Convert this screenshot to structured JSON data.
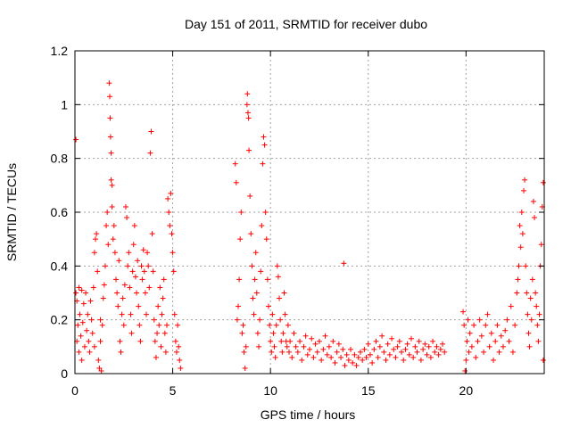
{
  "chart_data": {
    "type": "scatter",
    "title": "Day 151 of 2011, SRMTID for receiver dubo",
    "xlabel": "GPS time / hours",
    "ylabel": "SRMTID / TECUs",
    "xlim": [
      0,
      24
    ],
    "ylim": [
      0,
      1.2
    ],
    "xticks": [
      0,
      5,
      10,
      15,
      20
    ],
    "xtick_labels": [
      "0",
      "5",
      "10",
      "15",
      "20"
    ],
    "yticks": [
      0,
      0.2,
      0.4,
      0.6,
      0.8,
      1.0,
      1.2
    ],
    "ytick_labels": [
      "0",
      "0.2",
      "0.4",
      "0.6",
      "0.8",
      "1",
      "1.2"
    ],
    "grid": true,
    "series_color": "#ff0000",
    "marker": "plus",
    "series": [
      {
        "name": "SRMTID",
        "points": [
          [
            0.05,
            0.87
          ],
          [
            0.05,
            0.3
          ],
          [
            0.1,
            0.27
          ],
          [
            0.1,
            0.12
          ],
          [
            0.15,
            0.18
          ],
          [
            0.2,
            0.32
          ],
          [
            0.2,
            0.08
          ],
          [
            0.25,
            0.22
          ],
          [
            0.3,
            0.14
          ],
          [
            0.35,
            0.31
          ],
          [
            0.35,
            0.05
          ],
          [
            0.4,
            0.19
          ],
          [
            0.45,
            0.26
          ],
          [
            0.5,
            0.1
          ],
          [
            0.55,
            0.3
          ],
          [
            0.6,
            0.16
          ],
          [
            0.65,
            0.22
          ],
          [
            0.7,
            0.12
          ],
          [
            0.75,
            0.08
          ],
          [
            0.8,
            0.27
          ],
          [
            0.85,
            0.2
          ],
          [
            0.9,
            0.15
          ],
          [
            0.95,
            0.32
          ],
          [
            1.0,
            0.1
          ],
          [
            1.0,
            0.45
          ],
          [
            1.05,
            0.5
          ],
          [
            1.1,
            0.52
          ],
          [
            1.15,
            0.38
          ],
          [
            1.2,
            0.05
          ],
          [
            1.25,
            0.02
          ],
          [
            1.3,
            0.12
          ],
          [
            1.3,
            0.2
          ],
          [
            1.35,
            0.01
          ],
          [
            1.4,
            0.18
          ],
          [
            1.45,
            0.28
          ],
          [
            1.5,
            0.33
          ],
          [
            1.55,
            0.4
          ],
          [
            1.6,
            0.55
          ],
          [
            1.65,
            0.6
          ],
          [
            1.7,
            0.48
          ],
          [
            1.75,
            1.08
          ],
          [
            1.78,
            1.03
          ],
          [
            1.8,
            0.95
          ],
          [
            1.82,
            0.88
          ],
          [
            1.85,
            0.82
          ],
          [
            1.85,
            0.72
          ],
          [
            1.9,
            0.7
          ],
          [
            1.9,
            0.62
          ],
          [
            1.95,
            0.5
          ],
          [
            2.0,
            0.55
          ],
          [
            2.05,
            0.45
          ],
          [
            2.1,
            0.35
          ],
          [
            2.15,
            0.3
          ],
          [
            2.2,
            0.25
          ],
          [
            2.25,
            0.42
          ],
          [
            2.3,
            0.12
          ],
          [
            2.35,
            0.08
          ],
          [
            2.4,
            0.22
          ],
          [
            2.45,
            0.28
          ],
          [
            2.5,
            0.18
          ],
          [
            2.55,
            0.33
          ],
          [
            2.6,
            0.62
          ],
          [
            2.65,
            0.58
          ],
          [
            2.7,
            0.4
          ],
          [
            2.75,
            0.45
          ],
          [
            2.8,
            0.32
          ],
          [
            2.85,
            0.22
          ],
          [
            2.9,
            0.15
          ],
          [
            2.95,
            0.38
          ],
          [
            3.0,
            0.48
          ],
          [
            3.05,
            0.55
          ],
          [
            3.1,
            0.36
          ],
          [
            3.15,
            0.3
          ],
          [
            3.2,
            0.42
          ],
          [
            3.25,
            0.25
          ],
          [
            3.3,
            0.18
          ],
          [
            3.35,
            0.12
          ],
          [
            3.4,
            0.4
          ],
          [
            3.45,
            0.35
          ],
          [
            3.5,
            0.46
          ],
          [
            3.55,
            0.38
          ],
          [
            3.6,
            0.3
          ],
          [
            3.65,
            0.22
          ],
          [
            3.7,
            0.45
          ],
          [
            3.75,
            0.4
          ],
          [
            3.8,
            0.32
          ],
          [
            3.85,
            0.82
          ],
          [
            3.9,
            0.9
          ],
          [
            3.95,
            0.52
          ],
          [
            4.0,
            0.38
          ],
          [
            4.05,
            0.2
          ],
          [
            4.1,
            0.12
          ],
          [
            4.15,
            0.06
          ],
          [
            4.2,
            0.15
          ],
          [
            4.25,
            0.25
          ],
          [
            4.3,
            0.18
          ],
          [
            4.35,
            0.32
          ],
          [
            4.4,
            0.1
          ],
          [
            4.45,
            0.22
          ],
          [
            4.5,
            0.28
          ],
          [
            4.55,
            0.35
          ],
          [
            4.6,
            0.15
          ],
          [
            4.65,
            0.08
          ],
          [
            4.7,
            0.18
          ],
          [
            4.75,
            0.65
          ],
          [
            4.8,
            0.6
          ],
          [
            4.85,
            0.55
          ],
          [
            4.9,
            0.67
          ],
          [
            4.95,
            0.52
          ],
          [
            5.0,
            0.45
          ],
          [
            5.05,
            0.38
          ],
          [
            5.1,
            0.22
          ],
          [
            5.15,
            0.12
          ],
          [
            5.2,
            0.08
          ],
          [
            5.25,
            0.18
          ],
          [
            5.3,
            0.1
          ],
          [
            5.35,
            0.05
          ],
          [
            5.4,
            0.02
          ],
          [
            8.2,
            0.78
          ],
          [
            8.25,
            0.71
          ],
          [
            8.3,
            0.2
          ],
          [
            8.35,
            0.25
          ],
          [
            8.4,
            0.35
          ],
          [
            8.45,
            0.5
          ],
          [
            8.5,
            0.6
          ],
          [
            8.55,
            0.15
          ],
          [
            8.6,
            0.18
          ],
          [
            8.65,
            0.08
          ],
          [
            8.7,
            0.02
          ],
          [
            8.75,
            0.1
          ],
          [
            8.8,
            1.0
          ],
          [
            8.82,
            1.04
          ],
          [
            8.85,
            0.97
          ],
          [
            8.88,
            0.95
          ],
          [
            8.9,
            0.83
          ],
          [
            8.95,
            0.66
          ],
          [
            9.0,
            0.52
          ],
          [
            9.05,
            0.4
          ],
          [
            9.1,
            0.28
          ],
          [
            9.15,
            0.22
          ],
          [
            9.2,
            0.35
          ],
          [
            9.25,
            0.45
          ],
          [
            9.3,
            0.3
          ],
          [
            9.35,
            0.15
          ],
          [
            9.4,
            0.1
          ],
          [
            9.45,
            0.2
          ],
          [
            9.5,
            0.38
          ],
          [
            9.55,
            0.55
          ],
          [
            9.6,
            0.78
          ],
          [
            9.65,
            0.88
          ],
          [
            9.7,
            0.85
          ],
          [
            9.75,
            0.6
          ],
          [
            9.8,
            0.5
          ],
          [
            9.85,
            0.35
          ],
          [
            9.9,
            0.25
          ],
          [
            9.95,
            0.18
          ],
          [
            10.0,
            0.12
          ],
          [
            10.05,
            0.08
          ],
          [
            10.1,
            0.22
          ],
          [
            10.15,
            0.15
          ],
          [
            10.2,
            0.1
          ],
          [
            10.25,
            0.06
          ],
          [
            10.3,
            0.18
          ],
          [
            10.35,
            0.4
          ],
          [
            10.4,
            0.36
          ],
          [
            10.45,
            0.28
          ],
          [
            10.5,
            0.2
          ],
          [
            10.55,
            0.12
          ],
          [
            10.6,
            0.08
          ],
          [
            10.65,
            0.15
          ],
          [
            10.7,
            0.3
          ],
          [
            10.75,
            0.22
          ],
          [
            10.8,
            0.12
          ],
          [
            10.85,
            0.1
          ],
          [
            10.9,
            0.18
          ],
          [
            10.95,
            0.08
          ],
          [
            11.0,
            0.12
          ],
          [
            11.1,
            0.06
          ],
          [
            11.2,
            0.15
          ],
          [
            11.3,
            0.1
          ],
          [
            11.4,
            0.08
          ],
          [
            11.5,
            0.12
          ],
          [
            11.6,
            0.05
          ],
          [
            11.7,
            0.1
          ],
          [
            11.8,
            0.14
          ],
          [
            11.9,
            0.07
          ],
          [
            12.0,
            0.09
          ],
          [
            12.1,
            0.13
          ],
          [
            12.2,
            0.06
          ],
          [
            12.3,
            0.11
          ],
          [
            12.4,
            0.08
          ],
          [
            12.5,
            0.12
          ],
          [
            12.6,
            0.05
          ],
          [
            12.7,
            0.09
          ],
          [
            12.8,
            0.14
          ],
          [
            12.9,
            0.07
          ],
          [
            13.0,
            0.1
          ],
          [
            13.1,
            0.06
          ],
          [
            13.2,
            0.12
          ],
          [
            13.3,
            0.04
          ],
          [
            13.4,
            0.08
          ],
          [
            13.5,
            0.11
          ],
          [
            13.6,
            0.06
          ],
          [
            13.7,
            0.09
          ],
          [
            13.75,
            0.41
          ],
          [
            13.8,
            0.03
          ],
          [
            13.9,
            0.07
          ],
          [
            14.0,
            0.05
          ],
          [
            14.1,
            0.09
          ],
          [
            14.2,
            0.04
          ],
          [
            14.3,
            0.07
          ],
          [
            14.4,
            0.03
          ],
          [
            14.5,
            0.06
          ],
          [
            14.6,
            0.08
          ],
          [
            14.7,
            0.05
          ],
          [
            14.8,
            0.09
          ],
          [
            14.9,
            0.06
          ],
          [
            15.0,
            0.11
          ],
          [
            15.1,
            0.07
          ],
          [
            15.2,
            0.04
          ],
          [
            15.3,
            0.09
          ],
          [
            15.4,
            0.12
          ],
          [
            15.5,
            0.06
          ],
          [
            15.6,
            0.1
          ],
          [
            15.7,
            0.14
          ],
          [
            15.8,
            0.08
          ],
          [
            15.9,
            0.05
          ],
          [
            16.0,
            0.11
          ],
          [
            16.1,
            0.07
          ],
          [
            16.2,
            0.13
          ],
          [
            16.3,
            0.09
          ],
          [
            16.4,
            0.06
          ],
          [
            16.5,
            0.1
          ],
          [
            16.6,
            0.12
          ],
          [
            16.7,
            0.08
          ],
          [
            16.8,
            0.05
          ],
          [
            16.9,
            0.09
          ],
          [
            17.0,
            0.11
          ],
          [
            17.1,
            0.07
          ],
          [
            17.2,
            0.13
          ],
          [
            17.3,
            0.06
          ],
          [
            17.4,
            0.1
          ],
          [
            17.5,
            0.08
          ],
          [
            17.6,
            0.12
          ],
          [
            17.7,
            0.05
          ],
          [
            17.8,
            0.09
          ],
          [
            17.9,
            0.11
          ],
          [
            18.0,
            0.07
          ],
          [
            18.1,
            0.1
          ],
          [
            18.2,
            0.06
          ],
          [
            18.3,
            0.12
          ],
          [
            18.4,
            0.08
          ],
          [
            18.5,
            0.1
          ],
          [
            18.6,
            0.07
          ],
          [
            18.7,
            0.09
          ],
          [
            18.8,
            0.11
          ],
          [
            18.9,
            0.08
          ],
          [
            19.85,
            0.23
          ],
          [
            19.9,
            0.18
          ],
          [
            19.95,
            0.01
          ],
          [
            20.0,
            0.05
          ],
          [
            20.05,
            0.12
          ],
          [
            20.1,
            0.2
          ],
          [
            20.15,
            0.08
          ],
          [
            20.2,
            0.15
          ],
          [
            20.3,
            0.1
          ],
          [
            20.4,
            0.18
          ],
          [
            20.5,
            0.06
          ],
          [
            20.6,
            0.12
          ],
          [
            20.7,
            0.2
          ],
          [
            20.8,
            0.14
          ],
          [
            20.9,
            0.08
          ],
          [
            21.0,
            0.18
          ],
          [
            21.1,
            0.22
          ],
          [
            21.2,
            0.1
          ],
          [
            21.3,
            0.15
          ],
          [
            21.4,
            0.05
          ],
          [
            21.5,
            0.12
          ],
          [
            21.6,
            0.18
          ],
          [
            21.7,
            0.08
          ],
          [
            21.8,
            0.14
          ],
          [
            21.9,
            0.1
          ],
          [
            22.0,
            0.16
          ],
          [
            22.1,
            0.2
          ],
          [
            22.2,
            0.12
          ],
          [
            22.3,
            0.25
          ],
          [
            22.4,
            0.08
          ],
          [
            22.5,
            0.18
          ],
          [
            22.6,
            0.3
          ],
          [
            22.65,
            0.35
          ],
          [
            22.7,
            0.4
          ],
          [
            22.75,
            0.55
          ],
          [
            22.8,
            0.47
          ],
          [
            22.85,
            0.6
          ],
          [
            22.9,
            0.52
          ],
          [
            22.95,
            0.68
          ],
          [
            23.0,
            0.72
          ],
          [
            23.05,
            0.4
          ],
          [
            23.1,
            0.3
          ],
          [
            23.15,
            0.22
          ],
          [
            23.2,
            0.15
          ],
          [
            23.25,
            0.1
          ],
          [
            23.3,
            0.28
          ],
          [
            23.35,
            0.2
          ],
          [
            23.4,
            0.35
          ],
          [
            23.45,
            0.64
          ],
          [
            23.5,
            0.58
          ],
          [
            23.55,
            0.3
          ],
          [
            23.6,
            0.25
          ],
          [
            23.65,
            0.18
          ],
          [
            23.7,
            0.12
          ],
          [
            23.75,
            0.22
          ],
          [
            23.8,
            0.4
          ],
          [
            23.85,
            0.48
          ],
          [
            23.9,
            0.62
          ],
          [
            23.95,
            0.71
          ],
          [
            23.95,
            0.05
          ]
        ]
      }
    ]
  }
}
